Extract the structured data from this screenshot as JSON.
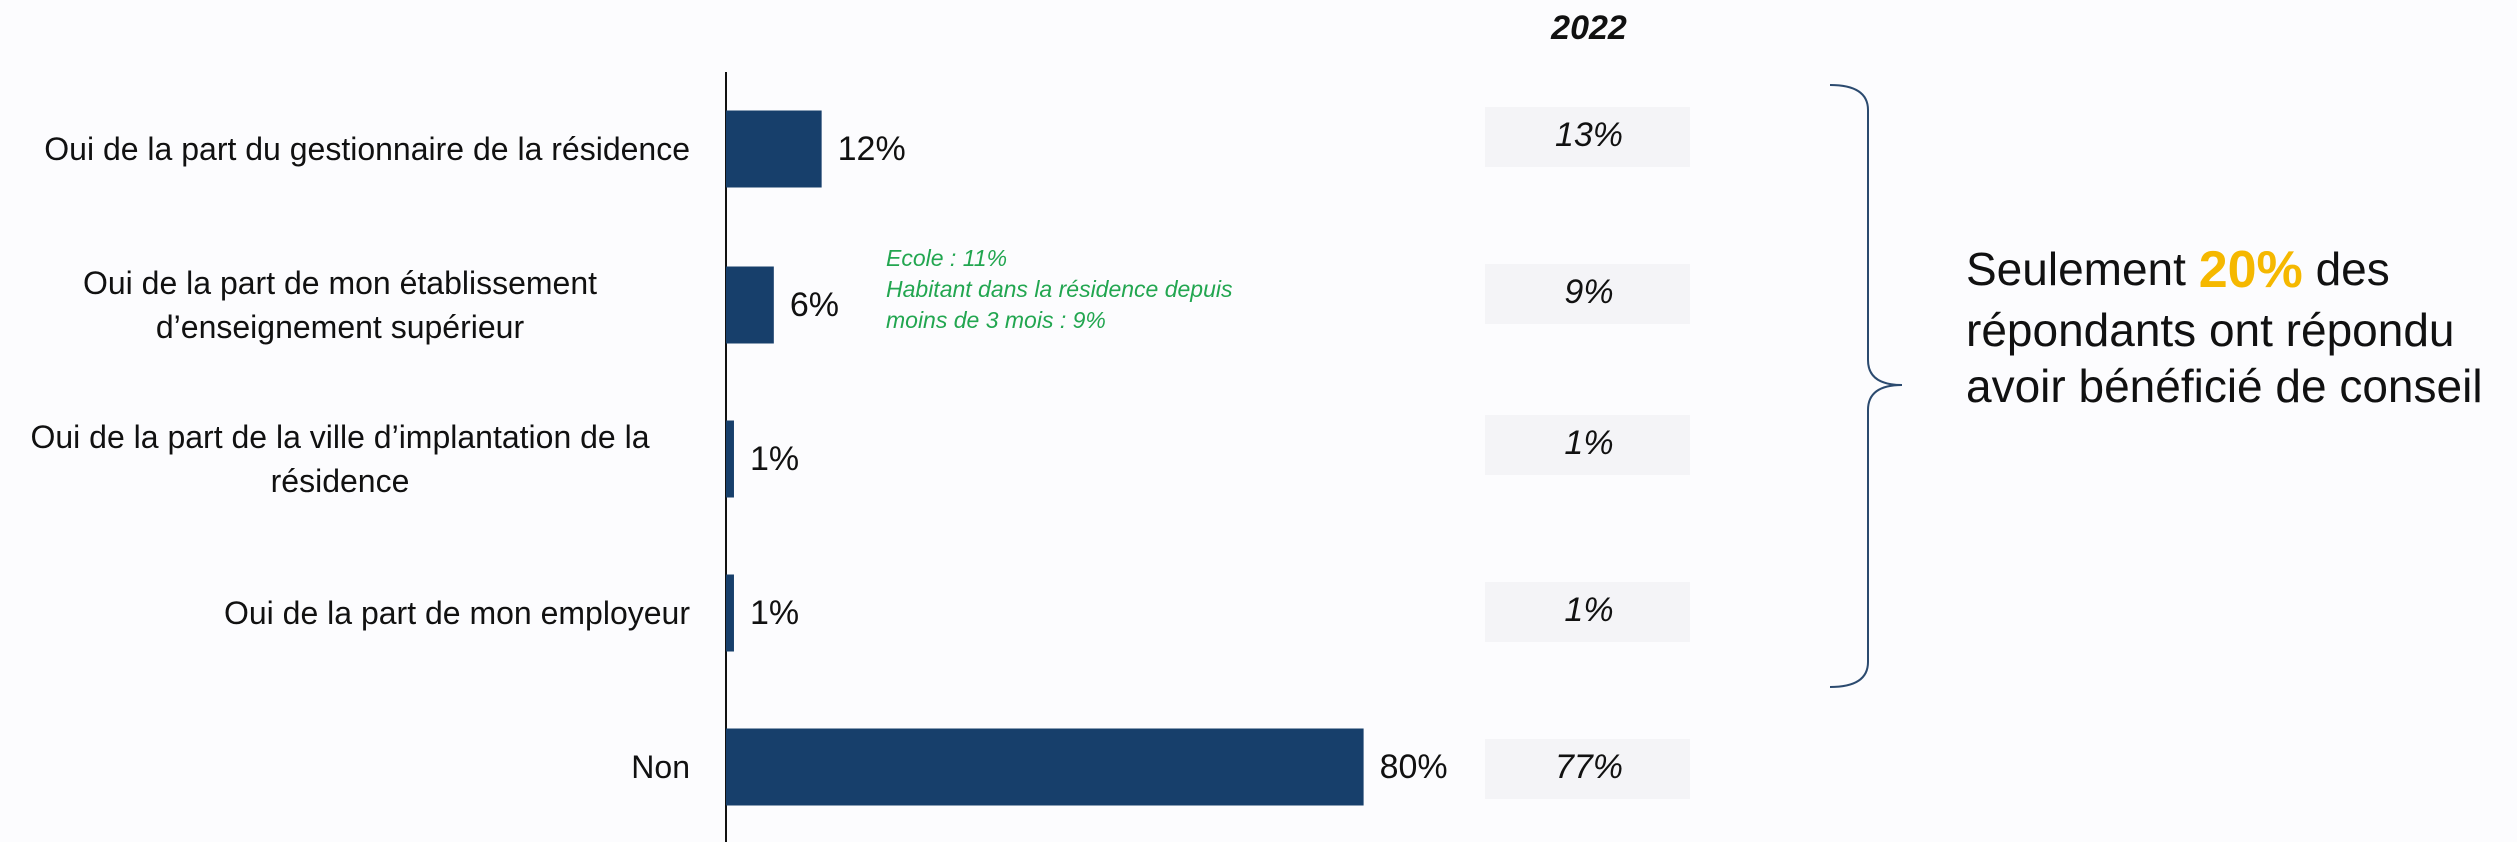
{
  "chart_data": {
    "type": "bar",
    "categories": [
      "Oui de la part du gestionnaire de la résidence",
      "Oui de la part de mon établissement d’enseignement supérieur",
      "Oui de la part de la ville d’implantation de la résidence",
      "Oui de la part de mon employeur",
      "Non"
    ],
    "values": [
      12,
      6,
      1,
      1,
      80
    ],
    "value_labels": [
      "12%",
      "6%",
      "1%",
      "1%",
      "80%"
    ],
    "color": "#173f6b",
    "comparison": {
      "title": "2022",
      "values": [
        13,
        9,
        1,
        1,
        77
      ],
      "value_labels": [
        "13%",
        "9%",
        "1%",
        "1%",
        "77%"
      ]
    },
    "annotation": [
      "Ecole : 11%",
      "Habitant dans la résidence depuis",
      "moins de 3 mois : 9%"
    ],
    "callout": {
      "lines": [
        [
          "Seulement",
          "20%",
          "des"
        ],
        [
          "répondants ont répondu"
        ],
        [
          "avoir bénéficié de conseil"
        ]
      ],
      "highlight_color": "#f5b800"
    }
  }
}
